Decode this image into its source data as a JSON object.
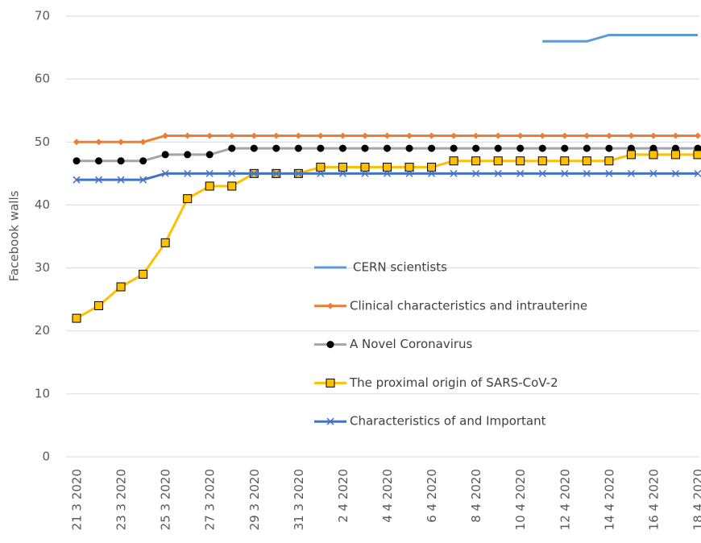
{
  "chart_data": {
    "type": "line",
    "y_label": "Facebook walls",
    "categories": [
      "21 3 2020",
      null,
      "23 3 2020",
      null,
      "25 3 2020",
      null,
      "27 3 2020",
      null,
      "29 3 2020",
      null,
      "31 3 2020",
      null,
      "2 4 2020",
      null,
      "4 4 2020",
      null,
      "6 4 2020",
      null,
      "8 4 2020",
      null,
      "10 4 2020",
      null,
      "12 4 2020",
      null,
      "14 4 2020",
      null,
      "16 4 2020",
      null,
      "18 4 2020"
    ],
    "series": [
      {
        "name": "CERN scientists",
        "color": "#5b9bd5",
        "values": [
          null,
          null,
          null,
          null,
          null,
          null,
          null,
          null,
          null,
          null,
          null,
          null,
          null,
          null,
          null,
          null,
          null,
          null,
          null,
          null,
          null,
          66,
          66,
          66,
          67,
          67,
          67,
          67,
          67
        ]
      },
      {
        "name": "Clinical characteristics and intrauterine",
        "color": "#ed7d31",
        "marker": "diamond",
        "values": [
          50,
          50,
          50,
          50,
          51,
          51,
          51,
          51,
          51,
          51,
          51,
          51,
          51,
          51,
          51,
          51,
          51,
          51,
          51,
          51,
          51,
          51,
          51,
          51,
          51,
          51,
          51,
          51,
          51
        ]
      },
      {
        "name": "A Novel Coronavirus",
        "color": "#a5a5a5",
        "marker": "circle",
        "values": [
          47,
          47,
          47,
          47,
          48,
          48,
          48,
          49,
          49,
          49,
          49,
          49,
          49,
          49,
          49,
          49,
          49,
          49,
          49,
          49,
          49,
          49,
          49,
          49,
          49,
          49,
          49,
          49,
          49
        ]
      },
      {
        "name": "The proximal origin of SARS-CoV-2",
        "color": "#ffc000",
        "marker": "square",
        "values": [
          22,
          24,
          27,
          29,
          34,
          41,
          43,
          43,
          45,
          45,
          45,
          46,
          46,
          46,
          46,
          46,
          46,
          47,
          47,
          47,
          47,
          47,
          47,
          47,
          47,
          48,
          48,
          48,
          48
        ]
      },
      {
        "name": "Characteristics of and Important",
        "color": "#4472c4",
        "marker": "x",
        "values": [
          44,
          44,
          44,
          44,
          45,
          45,
          45,
          45,
          45,
          45,
          45,
          45,
          45,
          45,
          45,
          45,
          45,
          45,
          45,
          45,
          45,
          45,
          45,
          45,
          45,
          45,
          45,
          45,
          45
        ]
      }
    ],
    "ylim": [
      0,
      70
    ],
    "yticks": [
      0,
      10,
      20,
      30,
      40,
      50,
      60,
      70
    ],
    "grid": true
  }
}
